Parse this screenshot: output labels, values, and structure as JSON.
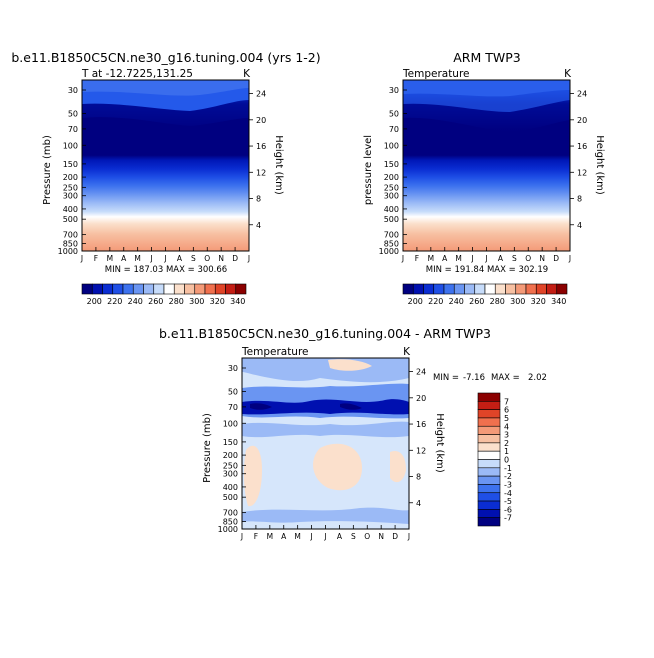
{
  "chart_data": [
    {
      "type": "heatmap",
      "title": "b.e11.B1850C5CN.ne30_g16.tuning.004 (yrs 1-2)",
      "subtitle_left": "T at -12.7225,131.25",
      "subtitle_right": "K",
      "ylabel": "Pressure (mb)",
      "ylabel_right": "Height (km)",
      "x_ticks": [
        "J",
        "F",
        "M",
        "A",
        "M",
        "J",
        "J",
        "A",
        "S",
        "O",
        "N",
        "D",
        "J"
      ],
      "y_ticks": [
        "30",
        "50",
        "70",
        "100",
        "150",
        "200",
        "250",
        "300",
        "400",
        "500",
        "700",
        "850",
        "1000"
      ],
      "y_ticks_right": [
        "24",
        "20",
        "16",
        "12",
        "8",
        "4"
      ],
      "stats": "MIN = 187.03  MAX = 300.66",
      "colorbar_labels": [
        "200",
        "220",
        "240",
        "260",
        "280",
        "300",
        "320",
        "340"
      ],
      "colorbar_colors": [
        "#000080",
        "#0010b0",
        "#0a2dd2",
        "#1f4fe6",
        "#3d72ee",
        "#6a95f2",
        "#9bbaf6",
        "#c7dcfa",
        "#ffffff",
        "#fbe0cc",
        "#f7c0a2",
        "#f49a78",
        "#f0704e",
        "#e04428",
        "#c41e14",
        "#8b0000"
      ]
    },
    {
      "type": "heatmap",
      "title": "ARM TWP3",
      "subtitle_left": "Temperature",
      "subtitle_right": "K",
      "ylabel": "pressure level",
      "ylabel_right": "Height (km)",
      "x_ticks": [
        "J",
        "F",
        "M",
        "A",
        "M",
        "J",
        "J",
        "A",
        "S",
        "O",
        "N",
        "D",
        "J"
      ],
      "y_ticks": [
        "30",
        "50",
        "70",
        "100",
        "150",
        "200",
        "250",
        "300",
        "400",
        "500",
        "700",
        "850",
        "1000"
      ],
      "y_ticks_right": [
        "24",
        "20",
        "16",
        "12",
        "8",
        "4"
      ],
      "stats": "MIN = 191.84  MAX = 302.19",
      "colorbar_labels": [
        "200",
        "220",
        "240",
        "260",
        "280",
        "300",
        "320",
        "340"
      ],
      "colorbar_colors": [
        "#000080",
        "#0010b0",
        "#0a2dd2",
        "#1f4fe6",
        "#3d72ee",
        "#6a95f2",
        "#9bbaf6",
        "#c7dcfa",
        "#ffffff",
        "#fbe0cc",
        "#f7c0a2",
        "#f49a78",
        "#f0704e",
        "#e04428",
        "#c41e14",
        "#8b0000"
      ]
    },
    {
      "type": "heatmap",
      "title": "b.e11.B1850C5CN.ne30_g16.tuning.004 - ARM TWP3",
      "subtitle_left": "Temperature",
      "subtitle_right": "K",
      "ylabel": "Pressure (mb)",
      "ylabel_right": "Height (km)",
      "x_ticks": [
        "J",
        "F",
        "M",
        "A",
        "M",
        "J",
        "J",
        "A",
        "S",
        "O",
        "N",
        "D",
        "J"
      ],
      "y_ticks": [
        "30",
        "50",
        "70",
        "100",
        "150",
        "200",
        "250",
        "300",
        "400",
        "500",
        "700",
        "850",
        "1000"
      ],
      "y_ticks_right": [
        "24",
        "20",
        "16",
        "12",
        "8",
        "4"
      ],
      "stats_min_label": "MIN =",
      "stats_min": "-7.16",
      "stats_max_label": "MAX =",
      "stats_max": "2.02",
      "colorbar_labels": [
        "7",
        "6",
        "5",
        "4",
        "3",
        "2",
        "1",
        "0",
        "-1",
        "-2",
        "-3",
        "-4",
        "-5",
        "-6",
        "-7"
      ],
      "colorbar_colors": [
        "#8b0000",
        "#c41e14",
        "#e04428",
        "#f0704e",
        "#f49a78",
        "#f7c0a2",
        "#fbe0cc",
        "#ffffff",
        "#c7dcfa",
        "#9bbaf6",
        "#6a95f2",
        "#3d72ee",
        "#1f4fe6",
        "#0a2dd2",
        "#0010b0",
        "#000080"
      ]
    }
  ]
}
